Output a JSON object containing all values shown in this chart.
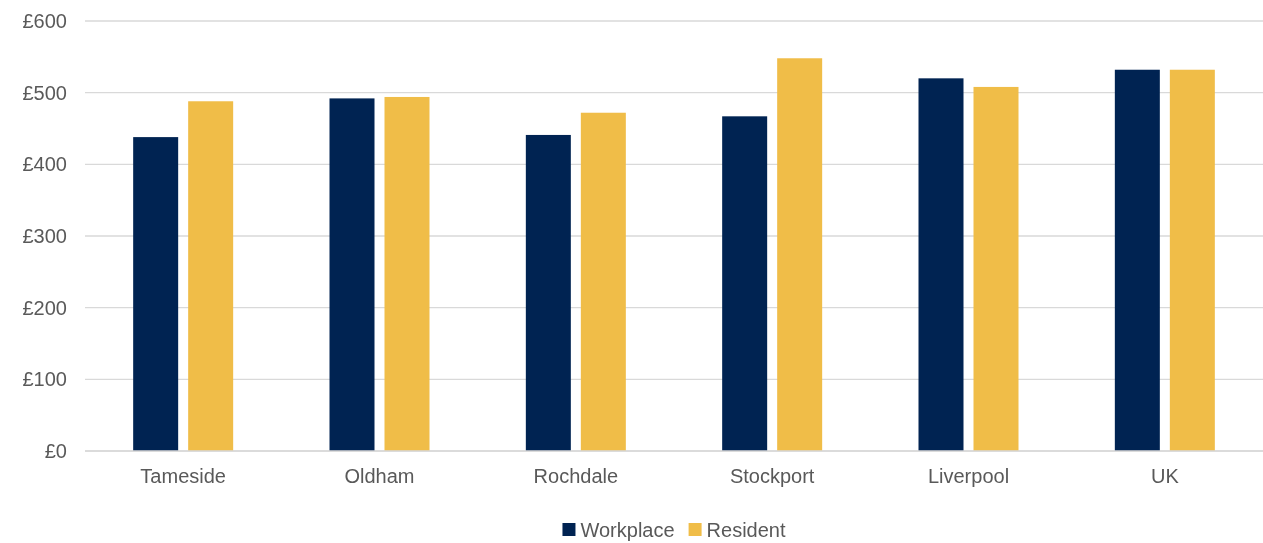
{
  "chart_data": {
    "type": "bar",
    "categories": [
      "Tameside",
      "Oldham",
      "Rochdale",
      "Stockport",
      "Liverpool",
      "UK"
    ],
    "series": [
      {
        "name": "Workplace",
        "color": "#002352",
        "values": [
          438,
          492,
          441,
          467,
          520,
          532
        ]
      },
      {
        "name": "Resident",
        "color": "#f0bd48",
        "values": [
          488,
          494,
          472,
          548,
          508,
          532
        ]
      }
    ],
    "ylim": [
      0,
      600
    ],
    "yticks": [
      {
        "value": 0,
        "label": "£0"
      },
      {
        "value": 100,
        "label": "£100"
      },
      {
        "value": 200,
        "label": "£200"
      },
      {
        "value": 300,
        "label": "£300"
      },
      {
        "value": 400,
        "label": "£400"
      },
      {
        "value": 500,
        "label": "£500"
      },
      {
        "value": 600,
        "label": "£600"
      }
    ],
    "grid": "y",
    "legend": "bottom"
  }
}
